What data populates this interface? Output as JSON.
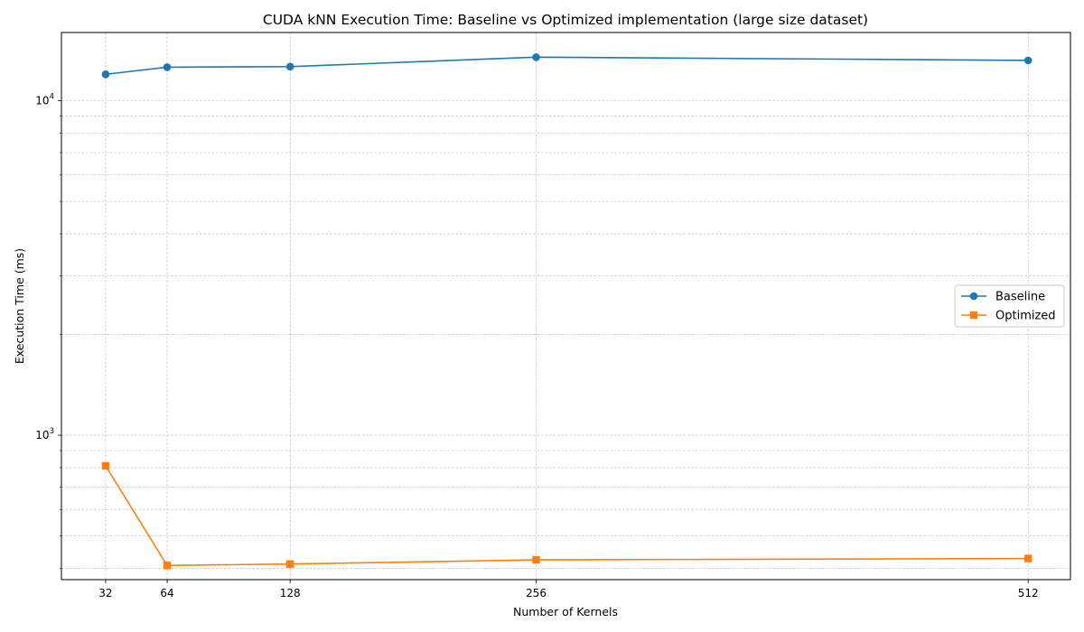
{
  "chart_data": {
    "type": "line",
    "title": "CUDA kNN Execution Time: Baseline vs Optimized implementation (large size dataset)",
    "xlabel": "Number of Kernels",
    "ylabel": "Execution Time (ms)",
    "x": [
      32,
      64,
      128,
      256,
      512
    ],
    "x_ticks": [
      "32",
      "64",
      "128",
      "256",
      "512"
    ],
    "xlim": [
      9,
      534
    ],
    "yscale": "log",
    "ylim": [
      370,
      16000
    ],
    "y_major_ticks": [
      {
        "value": 1000,
        "base": "10",
        "exp": "3"
      },
      {
        "value": 10000,
        "base": "10",
        "exp": "4"
      }
    ],
    "grid": true,
    "legend_position": "center-right",
    "series": [
      {
        "name": "Baseline",
        "marker": "circle",
        "color": "#1f77b4",
        "values": [
          12000,
          12600,
          12650,
          13500,
          13200
        ]
      },
      {
        "name": "Optimized",
        "marker": "square",
        "color": "#ff7f0e",
        "values": [
          810,
          408,
          412,
          424,
          428
        ]
      }
    ]
  }
}
